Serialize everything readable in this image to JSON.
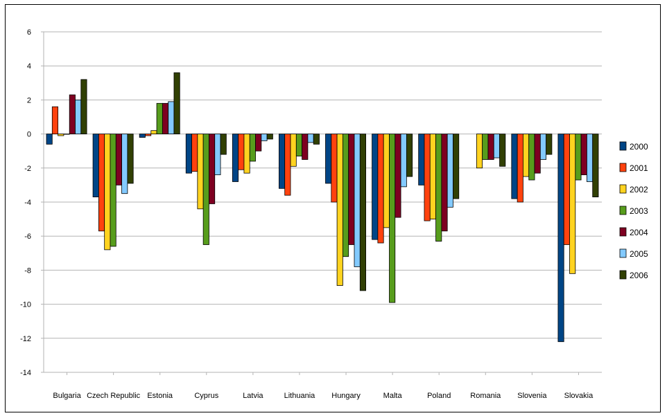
{
  "chart_data": {
    "type": "bar",
    "title": "",
    "xlabel": "",
    "ylabel": "",
    "ylim": [
      -14,
      6
    ],
    "yticks": [
      6,
      4,
      2,
      0,
      -2,
      -4,
      -6,
      -8,
      -10,
      -12,
      -14
    ],
    "grid": true,
    "legend_position": "right",
    "categories": [
      "Bulgaria",
      "Czech Republic",
      "Estonia",
      "Cyprus",
      "Latvia",
      "Lithuania",
      "Hungary",
      "Malta",
      "Poland",
      "Romania",
      "Slovenia",
      "Slovakia"
    ],
    "series": [
      {
        "name": "2000",
        "color": "#004586",
        "values": [
          -0.6,
          -3.7,
          -0.2,
          -2.3,
          -2.8,
          -3.2,
          -2.9,
          -6.2,
          -3.0,
          null,
          -3.8,
          -12.2
        ]
      },
      {
        "name": "2001",
        "color": "#ff420e",
        "values": [
          1.6,
          -5.7,
          -0.1,
          -2.2,
          -2.1,
          -3.6,
          -4.0,
          -6.4,
          -5.1,
          null,
          -4.0,
          -6.5
        ]
      },
      {
        "name": "2002",
        "color": "#ffd320",
        "values": [
          -0.1,
          -6.8,
          0.2,
          -4.4,
          -2.3,
          -1.9,
          -8.9,
          -5.5,
          -5.0,
          -2.0,
          -2.5,
          -8.2
        ]
      },
      {
        "name": "2003",
        "color": "#579d1c",
        "values": [
          0.0,
          -6.6,
          1.8,
          -6.5,
          -1.6,
          -1.3,
          -7.2,
          -9.9,
          -6.3,
          -1.5,
          -2.7,
          -2.7
        ]
      },
      {
        "name": "2004",
        "color": "#7e0021",
        "values": [
          2.3,
          -3.0,
          1.8,
          -4.1,
          -1.0,
          -1.5,
          -6.5,
          -4.9,
          -5.7,
          -1.5,
          -2.3,
          -2.4
        ]
      },
      {
        "name": "2005",
        "color": "#83caff",
        "values": [
          2.0,
          -3.5,
          1.9,
          -2.4,
          -0.4,
          -0.5,
          -7.8,
          -3.1,
          -4.3,
          -1.4,
          -1.5,
          -2.8
        ]
      },
      {
        "name": "2006",
        "color": "#314004",
        "values": [
          3.2,
          -2.9,
          3.6,
          -1.2,
          -0.3,
          -0.6,
          -9.2,
          -2.5,
          -3.8,
          -1.9,
          -1.2,
          -3.7
        ]
      }
    ]
  }
}
